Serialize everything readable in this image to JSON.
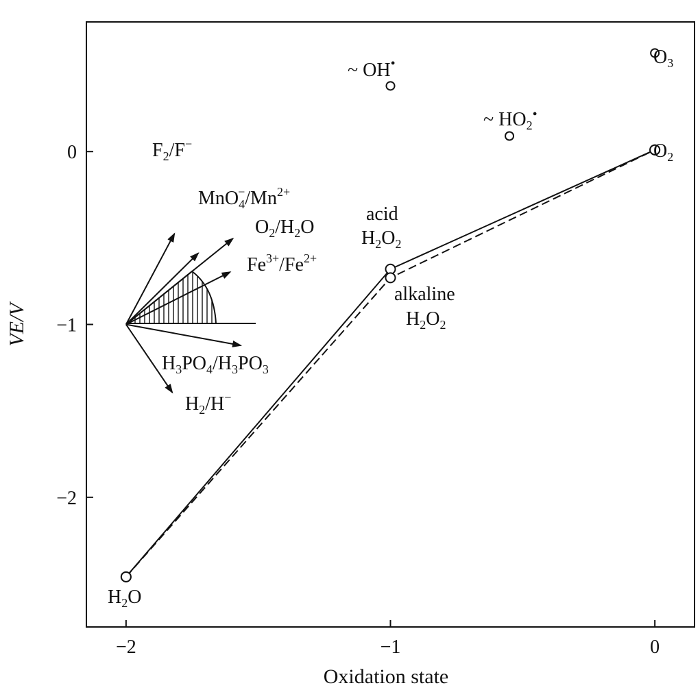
{
  "chart_data": {
    "type": "line",
    "title": "",
    "xlabel": "Oxidation state",
    "ylabel": "VE/V",
    "xlim": [
      -2.15,
      0.15
    ],
    "ylim": [
      -2.75,
      0.75
    ],
    "xticks": [
      {
        "v": -2,
        "label": "−2"
      },
      {
        "v": -1,
        "label": "−1"
      },
      {
        "v": 0,
        "label": "0"
      }
    ],
    "yticks": [
      {
        "v": 0,
        "label": "0"
      },
      {
        "v": -1,
        "label": "−1"
      },
      {
        "v": -2,
        "label": "−2"
      }
    ],
    "grid": false,
    "series": [
      {
        "name": "acid",
        "style": "solid",
        "points": [
          [
            -2,
            -2.46
          ],
          [
            -1,
            -0.68
          ],
          [
            0,
            0.01
          ]
        ]
      },
      {
        "name": "alkaline",
        "style": "dashed",
        "points": [
          [
            -2,
            -2.46
          ],
          [
            -1,
            -0.73
          ],
          [
            0,
            0.01
          ]
        ]
      }
    ],
    "isolated_points": [
      {
        "x": -1,
        "y": 0.38,
        "label": "~ OH•"
      },
      {
        "x": -0.55,
        "y": 0.09,
        "label": "~ HO2•"
      },
      {
        "x": 0,
        "y": 0.57,
        "label": "O3"
      }
    ],
    "point_labels": [
      {
        "text": "H₂O"
      },
      {
        "text": "O₂"
      },
      {
        "text": "acid H₂O₂"
      },
      {
        "text": "alkaline H₂O₂"
      }
    ],
    "inset_slopes": {
      "origin": [
        -2,
        -1
      ],
      "arrows": [
        {
          "label": "F₂/F⁻",
          "slope": 2.87
        },
        {
          "label": "MnO₄⁻/Mn²⁺",
          "slope": 1.51
        },
        {
          "label": "O₂/H₂O",
          "slope": 1.23
        },
        {
          "label": "Fe³⁺/Fe²⁺",
          "slope": 0.77
        },
        {
          "label": "H₃PO₄/H₃PO₃",
          "slope": -0.28
        },
        {
          "label": "H₂/H⁻",
          "slope": -2.25
        }
      ]
    }
  }
}
